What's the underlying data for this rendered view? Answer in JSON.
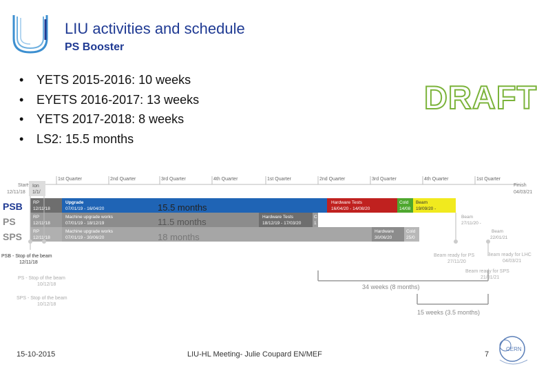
{
  "header": {
    "title": "LIU activities and schedule",
    "subtitle": "PS Booster"
  },
  "bullets": [
    "YETS 2015-2016: 10 weeks",
    "EYETS 2016-2017: 13 weeks",
    "YETS 2017-2018: 8 weeks",
    "LS2: 15.5 months"
  ],
  "bullet_symbol": "•",
  "watermark": "DRAFT",
  "gantt": {
    "quarters": [
      "1st Quarter",
      "2nd Quarter",
      "3rd Quarter",
      "4th Quarter",
      "1st Quarter",
      "2nd Quarter",
      "3rd Quarter",
      "4th Quarter",
      "1st Quarter",
      "2nd Quarter",
      "3rd Quarter",
      "4th Quarter",
      "1st Quarter"
    ],
    "start": {
      "label": "Start",
      "date": "12/11/18"
    },
    "finish": {
      "label": "Finish",
      "date": "04/03/21"
    },
    "ion": {
      "label": "Ion",
      "date": "1/1/"
    },
    "rows": {
      "psb": {
        "label": "PSB",
        "rp": {
          "label": "RP",
          "date": "12/11/18"
        },
        "upgrade": {
          "label": "Upgrade",
          "dates": "07/01/19 - 16/04/20"
        },
        "duration": "15.5 months",
        "hw_tests": {
          "label": "Hardware Tests",
          "dates": "16/04/20 - 14/08/20"
        },
        "cold": {
          "label": "Cold",
          "date": "14/08"
        },
        "beam": {
          "label": "Beam",
          "date": "19/09/20 -"
        }
      },
      "ps": {
        "label": "PS",
        "rp": {
          "label": "RP",
          "date": "12/11/18"
        },
        "works": {
          "label": "Machine upgrade works",
          "dates": "07/01/19 - 18/12/19"
        },
        "duration": "11.5 months",
        "hw_tests": {
          "label": "Hardware Tests",
          "dates": "18/12/19 - 17/03/20"
        },
        "c": "C",
        "one": "1",
        "beam": {
          "label": "Beam",
          "date": "27/11/20 -"
        }
      },
      "sps": {
        "label": "SPS",
        "rp": {
          "label": "RP",
          "date": "12/11/18"
        },
        "works": {
          "label": "Machine upgrade works",
          "dates": "07/01/19 - 30/06/20"
        },
        "duration": "18 months",
        "hardware": {
          "label": "Hardware",
          "date": "30/06/20"
        },
        "cold": {
          "label": "Cold",
          "date": "25/0"
        },
        "beam": {
          "label": "Beam",
          "date": "22/01/21"
        }
      }
    },
    "milestones": {
      "psb_stop": {
        "label": "PSB - Stop of the beam",
        "date": "12/11/18"
      },
      "ps_stop": {
        "label": "PS - Stop of the beam",
        "date": "10/12/18"
      },
      "sps_stop": {
        "label": "SPS - Stop of the beam",
        "date": "10/12/18"
      },
      "ready_ps": {
        "label": "Beam ready for PS",
        "date": "27/11/20"
      },
      "ready_lhc": {
        "label": "Beam ready for LHC",
        "date": "04/03/21"
      },
      "ready_sps": {
        "label": "Beam ready for SPS",
        "date": "21/01/21"
      }
    },
    "span_34": "34 weeks (8 months)",
    "span_15": "15 weeks (3.5 months)"
  },
  "footer": {
    "date": "15-10-2015",
    "center": "LIU-HL Meeting- Julie Coupard EN/MEF",
    "page": "7"
  },
  "colors": {
    "title": "#1f3a93",
    "psb_bar": "#1f64b5",
    "hw_tests": "#c0211f",
    "cold": "#4ea72e",
    "beam": "#f1ea1e",
    "gray_bar": "#8c8c8c",
    "draft_outline": "#7bb33a"
  }
}
